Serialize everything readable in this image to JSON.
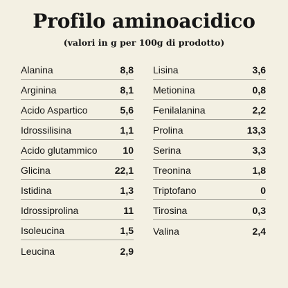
{
  "title": "Profilo aminoacidico",
  "subtitle": "(valori in g per 100g di prodotto)",
  "left_column": [
    {
      "name": "Alanina",
      "value": "8,8"
    },
    {
      "name": "Arginina",
      "value": "8,1"
    },
    {
      "name": "Acido Aspartico",
      "value": "5,6"
    },
    {
      "name": "Idrossilisina",
      "value": "1,1"
    },
    {
      "name": "Acido glutammico",
      "value": "10"
    },
    {
      "name": "Glicina",
      "value": "22,1"
    },
    {
      "name": "Istidina",
      "value": "1,3"
    },
    {
      "name": "Idrossiprolina",
      "value": "11"
    },
    {
      "name": "Isoleucina",
      "value": "1,5"
    },
    {
      "name": "Leucina",
      "value": "2,9"
    }
  ],
  "right_column": [
    {
      "name": "Lisina",
      "value": "3,6"
    },
    {
      "name": "Metionina",
      "value": "0,8"
    },
    {
      "name": "Fenilalanina",
      "value": "2,2"
    },
    {
      "name": "Prolina",
      "value": "13,3"
    },
    {
      "name": "Serina",
      "value": "3,3"
    },
    {
      "name": "Treonina",
      "value": "1,8"
    },
    {
      "name": "Triptofano",
      "value": "0"
    },
    {
      "name": "Tirosina",
      "value": "0,3"
    },
    {
      "name": "Valina",
      "value": "2,4"
    }
  ]
}
